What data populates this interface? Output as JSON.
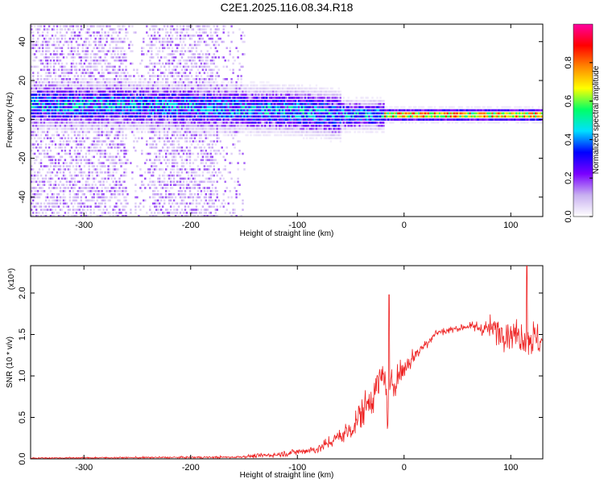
{
  "title": "C2E1.2025.116.08.34.R18",
  "chart_data": [
    {
      "type": "heatmap",
      "xlabel": "Height of straight line (km)",
      "ylabel": "Frequency (Hz)",
      "xlim": [
        -350,
        130
      ],
      "ylim": [
        -50,
        49
      ],
      "x_ticks": [
        -300,
        -200,
        -100,
        0,
        100
      ],
      "y_ticks": [
        -40,
        -20,
        0,
        20,
        40
      ],
      "colorbar": {
        "label": "Normalized spectral amplitude",
        "range": [
          0.0,
          1.0
        ],
        "ticks": [
          "0.0",
          "0.2",
          "0.4",
          "0.6",
          "0.8"
        ],
        "colormap": [
          "#ffffff",
          "#c8b0f0",
          "#7a00ff",
          "#0000ff",
          "#00e0ff",
          "#00ff66",
          "#ffff00",
          "#ff8800",
          "#ff0000",
          "#ff00a0"
        ]
      },
      "ridge_center_hz": [
        {
          "x": -265,
          "y": 7
        },
        {
          "x": -200,
          "y": 6
        },
        {
          "x": -150,
          "y": 5
        },
        {
          "x": -100,
          "y": 4
        },
        {
          "x": -60,
          "y": 2
        },
        {
          "x": -30,
          "y": 2
        },
        {
          "x": 0,
          "y": 2
        },
        {
          "x": 130,
          "y": 2
        }
      ]
    },
    {
      "type": "line",
      "xlabel": "Height of straight line (km)",
      "ylabel": "SNR (10 * v/v)",
      "y_multiplier": "(x10⁴)",
      "xlim": [
        -350,
        130
      ],
      "ylim": [
        0.0,
        2.33
      ],
      "x_ticks": [
        -300,
        -200,
        -100,
        0,
        100
      ],
      "y_ticks": [
        "0.0",
        "0.5",
        "1.0",
        "1.5",
        "2.0"
      ],
      "color": "#ee2222",
      "envelope": [
        {
          "x": -350,
          "mean": 0.01,
          "spread": 0.01
        },
        {
          "x": -160,
          "mean": 0.02,
          "spread": 0.02
        },
        {
          "x": -120,
          "mean": 0.05,
          "spread": 0.05
        },
        {
          "x": -80,
          "mean": 0.12,
          "spread": 0.08
        },
        {
          "x": -50,
          "mean": 0.35,
          "spread": 0.22
        },
        {
          "x": -30,
          "mean": 0.75,
          "spread": 0.35
        },
        {
          "x": -18,
          "mean": 1.05,
          "spread": 0.3
        },
        {
          "x": -15,
          "mean": 0.4,
          "spread": 0.3
        },
        {
          "x": -12,
          "mean": 0.9,
          "spread": 0.35
        },
        {
          "x": 10,
          "mean": 1.25,
          "spread": 0.15
        },
        {
          "x": 30,
          "mean": 1.52,
          "spread": 0.08
        },
        {
          "x": 60,
          "mean": 1.6,
          "spread": 0.06
        },
        {
          "x": 90,
          "mean": 1.55,
          "spread": 0.28
        },
        {
          "x": 130,
          "mean": 1.42,
          "spread": 0.35
        }
      ],
      "peaks": [
        {
          "x": -14,
          "y": 1.98
        },
        {
          "x": 115,
          "y": 2.33
        }
      ]
    }
  ]
}
